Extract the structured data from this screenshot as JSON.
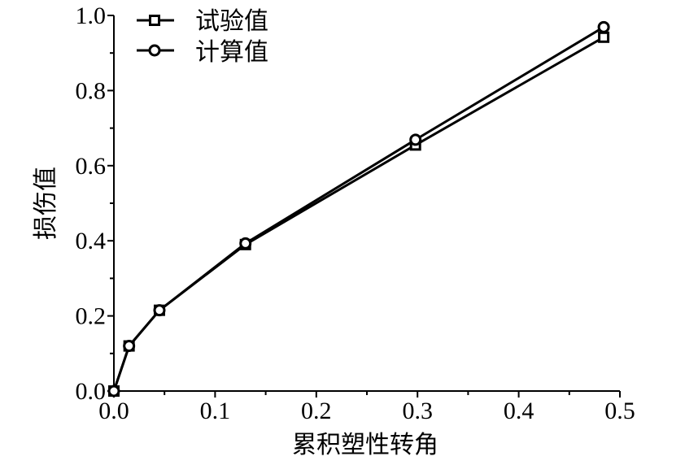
{
  "chart_data": {
    "type": "line",
    "xlabel": "累积塑性转角",
    "ylabel": "损伤值",
    "xlim": [
      0.0,
      0.5
    ],
    "ylim": [
      0.0,
      1.0
    ],
    "x_ticks": [
      "0.0",
      "0.1",
      "0.2",
      "0.3",
      "0.4",
      "0.5"
    ],
    "y_ticks": [
      "0.0",
      "0.2",
      "0.4",
      "0.6",
      "0.8",
      "1.0"
    ],
    "x_tick_values": [
      0.0,
      0.1,
      0.2,
      0.3,
      0.4,
      0.5
    ],
    "y_tick_values": [
      0.0,
      0.2,
      0.4,
      0.6,
      0.8,
      1.0
    ],
    "grid": false,
    "legend_position": "top-left",
    "series": [
      {
        "name": "试验值",
        "marker": "square",
        "x": [
          0.0,
          0.015,
          0.045,
          0.13,
          0.298,
          0.484
        ],
        "y": [
          0.0,
          0.12,
          0.215,
          0.39,
          0.655,
          0.942
        ]
      },
      {
        "name": "计算值",
        "marker": "circle",
        "x": [
          0.0,
          0.015,
          0.045,
          0.13,
          0.298,
          0.484
        ],
        "y": [
          0.0,
          0.12,
          0.215,
          0.393,
          0.669,
          0.969
        ]
      }
    ],
    "colors": {
      "line": "#000000",
      "marker_fill": "#ffffff",
      "background": "#ffffff"
    }
  }
}
